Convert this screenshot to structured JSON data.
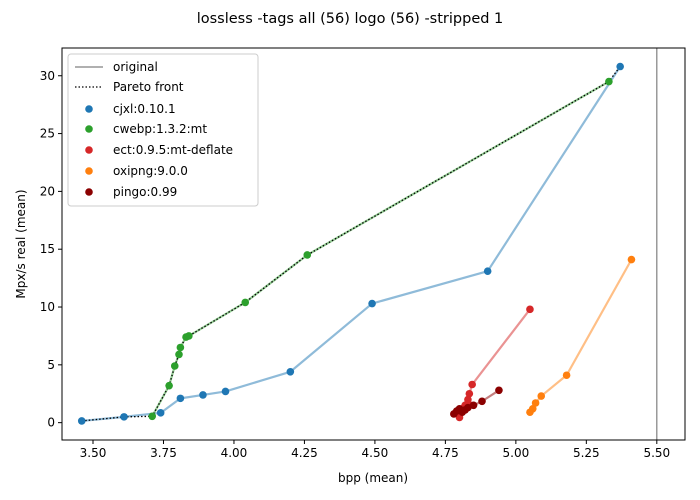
{
  "chart_data": {
    "type": "scatter",
    "title": "lossless -tags all (56) logo (56) -stripped 1",
    "xlabel": "bpp (mean)",
    "ylabel": "Mpx/s real (mean)",
    "xlim": [
      3.39,
      5.6
    ],
    "ylim": [
      -1.5,
      32.4
    ],
    "xticks": [
      "3.50",
      "3.75",
      "4.00",
      "4.25",
      "4.50",
      "4.75",
      "5.00",
      "5.25",
      "5.50"
    ],
    "yticks": [
      "0",
      "5",
      "10",
      "15",
      "20",
      "25",
      "30"
    ],
    "grid": false,
    "legend_position": "top-left",
    "legend": {
      "original": "original",
      "pareto": "Pareto front",
      "s0": "cjxl:0.10.1",
      "s1": "cwebp:1.3.2:mt",
      "s2": "ect:0.9.5:mt-deflate",
      "s3": "oxipng:9.0.0",
      "s4": "pingo:0.99"
    },
    "original_x": 5.5,
    "series": [
      {
        "name": "cjxl:0.10.1",
        "color": "#1f77b4",
        "points": [
          [
            3.46,
            0.15
          ],
          [
            3.61,
            0.5
          ],
          [
            3.74,
            0.85
          ],
          [
            3.81,
            2.1
          ],
          [
            3.89,
            2.4
          ],
          [
            3.97,
            2.7
          ],
          [
            4.2,
            4.4
          ],
          [
            4.49,
            10.3
          ],
          [
            4.9,
            13.1
          ],
          [
            5.37,
            30.8
          ]
        ]
      },
      {
        "name": "cwebp:1.3.2:mt",
        "color": "#2ca02c",
        "points": [
          [
            3.71,
            0.55
          ],
          [
            3.77,
            3.2
          ],
          [
            3.79,
            4.9
          ],
          [
            3.805,
            5.9
          ],
          [
            3.81,
            6.5
          ],
          [
            3.83,
            7.4
          ],
          [
            3.84,
            7.5
          ],
          [
            4.04,
            10.4
          ],
          [
            4.26,
            14.5
          ],
          [
            5.33,
            29.5
          ]
        ]
      },
      {
        "name": "ect:0.9.5:mt-deflate",
        "color": "#d62728",
        "points": [
          [
            4.8,
            0.45
          ],
          [
            4.8,
            0.9
          ],
          [
            4.81,
            1.2
          ],
          [
            4.82,
            1.5
          ],
          [
            4.83,
            1.7
          ],
          [
            4.83,
            2.0
          ],
          [
            4.835,
            2.5
          ],
          [
            4.845,
            3.3
          ],
          [
            5.05,
            9.8
          ]
        ]
      },
      {
        "name": "oxipng:9.0.0",
        "color": "#ff7f0e",
        "points": [
          [
            5.05,
            0.9
          ],
          [
            5.06,
            1.2
          ],
          [
            5.07,
            1.7
          ],
          [
            5.09,
            2.3
          ],
          [
            5.18,
            4.1
          ],
          [
            5.41,
            14.1
          ]
        ]
      },
      {
        "name": "pingo:0.99",
        "color": "#8b0000",
        "points": [
          [
            4.78,
            0.75
          ],
          [
            4.79,
            1.0
          ],
          [
            4.8,
            1.2
          ],
          [
            4.81,
            0.9
          ],
          [
            4.82,
            1.1
          ],
          [
            4.83,
            1.3
          ],
          [
            4.85,
            1.5
          ],
          [
            4.88,
            1.85
          ],
          [
            4.94,
            2.8
          ]
        ]
      }
    ],
    "pareto_front": [
      [
        3.46,
        0.15
      ],
      [
        3.61,
        0.5
      ],
      [
        3.71,
        0.55
      ],
      [
        3.77,
        3.2
      ],
      [
        3.79,
        4.9
      ],
      [
        3.805,
        5.9
      ],
      [
        3.81,
        6.5
      ],
      [
        3.83,
        7.4
      ],
      [
        3.84,
        7.5
      ],
      [
        4.04,
        10.4
      ],
      [
        4.26,
        14.5
      ],
      [
        5.33,
        29.5
      ],
      [
        5.37,
        30.8
      ]
    ]
  }
}
